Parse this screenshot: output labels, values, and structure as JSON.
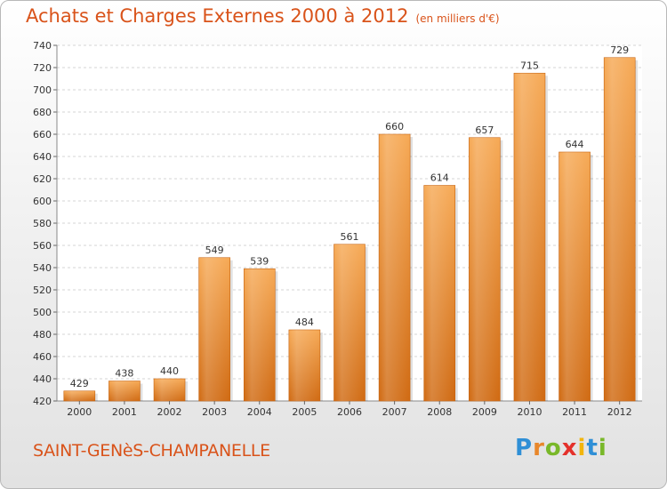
{
  "header": {
    "title": "Achats et Charges Externes 2000 à 2012",
    "unit": "(en milliers d'€)"
  },
  "footer": {
    "commune": "SAINT-GENèS-CHAMPANELLE"
  },
  "brand": {
    "letters": [
      "P",
      "r",
      "o",
      "x",
      "i",
      "t",
      "i"
    ],
    "colors": [
      "#2f8fd6",
      "#e8872b",
      "#79b829",
      "#e4312b",
      "#f2b50c",
      "#2f8fd6",
      "#79b829"
    ]
  },
  "chart_data": {
    "type": "bar",
    "title": "Achats et Charges Externes 2000 à 2012",
    "categories": [
      "2000",
      "2001",
      "2002",
      "2003",
      "2004",
      "2005",
      "2006",
      "2007",
      "2008",
      "2009",
      "2010",
      "2011",
      "2012"
    ],
    "values": [
      429,
      438,
      440,
      549,
      539,
      484,
      561,
      660,
      614,
      657,
      715,
      644,
      729
    ],
    "ylim": [
      420,
      740
    ],
    "yticks": [
      420,
      440,
      460,
      480,
      500,
      520,
      540,
      560,
      580,
      600,
      620,
      640,
      660,
      680,
      700,
      720,
      740
    ],
    "grid": true,
    "bar_color": "#e8822a",
    "xlabel": "",
    "ylabel": ""
  }
}
